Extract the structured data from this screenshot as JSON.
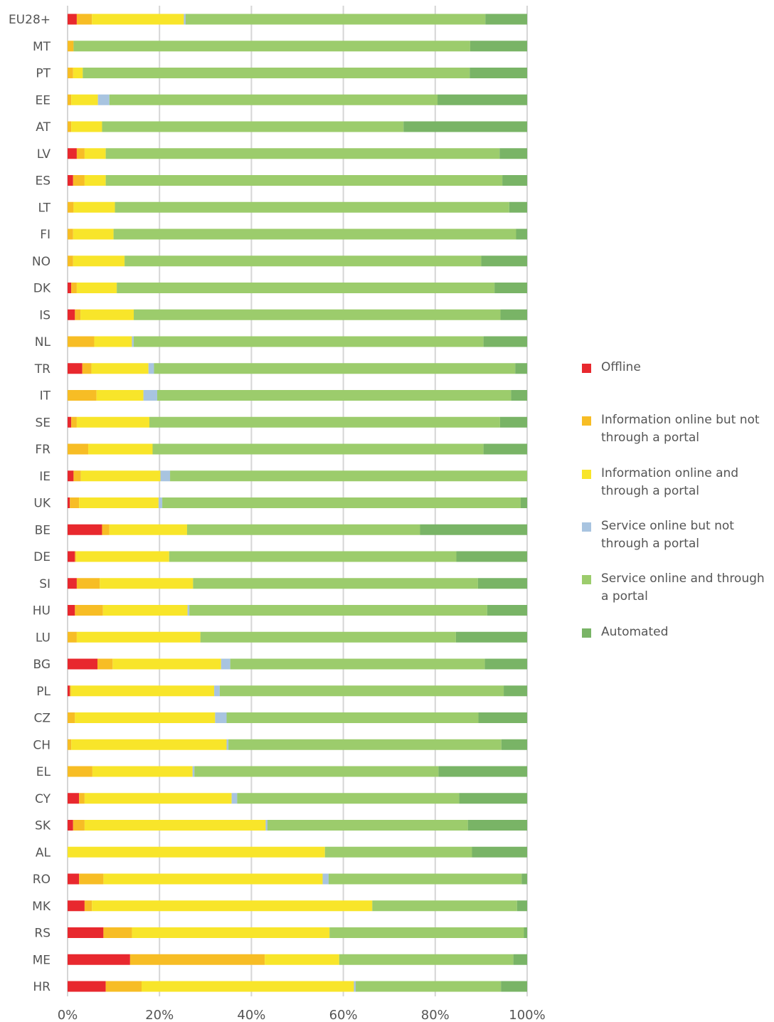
{
  "chart_data": {
    "type": "bar",
    "orientation": "horizontal",
    "stacked": true,
    "normalized": true,
    "title": "",
    "xlabel": "",
    "ylabel": "",
    "xlim": [
      0,
      100
    ],
    "x_ticks": [
      "0%",
      "20%",
      "40%",
      "60%",
      "80%",
      "100%"
    ],
    "grid": "vertical",
    "legend_position": "right",
    "categories": [
      "EU28+",
      "MT",
      "PT",
      "EE",
      "AT",
      "LV",
      "ES",
      "LT",
      "FI",
      "NO",
      "DK",
      "IS",
      "NL",
      "TR",
      "IT",
      "SE",
      "FR",
      "IE",
      "UK",
      "BE",
      "DE",
      "SI",
      "HU",
      "LU",
      "BG",
      "PL",
      "CZ",
      "CH",
      "EL",
      "CY",
      "SK",
      "AL",
      "RO",
      "MK",
      "RS",
      "ME",
      "HR"
    ],
    "series": [
      {
        "name": "Offline",
        "color": "#e8282e",
        "values": [
          2,
          0,
          0,
          0,
          0,
          2,
          1.2,
          0,
          0,
          0,
          0.8,
          1.6,
          0,
          3.2,
          0,
          0.8,
          0,
          1.3,
          0.5,
          7.5,
          1.6,
          2,
          1.6,
          0,
          6.5,
          0.5,
          0,
          0,
          0,
          2.5,
          1.2,
          0,
          2.5,
          3.7,
          7.8,
          13.6,
          8.3
        ]
      },
      {
        "name": "Information online but not through a portal",
        "color": "#f7bd25",
        "values": [
          3.3,
          1.3,
          1.2,
          0.8,
          0.8,
          1.7,
          2.5,
          1.3,
          1.2,
          1.2,
          1.2,
          1.2,
          5.8,
          2,
          6.3,
          1.2,
          4.5,
          1.6,
          2,
          1.6,
          0.3,
          5,
          6.1,
          2,
          3.3,
          0.3,
          1.6,
          0.8,
          5.4,
          1.2,
          2.5,
          0,
          5.3,
          1.6,
          6.2,
          29.3,
          7.8
        ]
      },
      {
        "name": "Information online and through a portal",
        "color": "#f8e52a",
        "values": [
          20,
          0,
          2.1,
          5.8,
          6.7,
          4.6,
          4.6,
          9,
          8.8,
          11.2,
          8.7,
          11.6,
          8.2,
          12.4,
          10.2,
          15.8,
          14,
          17.3,
          17.3,
          16.9,
          20.2,
          20.3,
          18.4,
          26.9,
          23.6,
          31.1,
          30.5,
          33.8,
          21.8,
          32,
          39.4,
          56,
          47.7,
          61,
          43,
          16.2,
          46.2
        ]
      },
      {
        "name": "Service online but not through a portal",
        "color": "#a8c4e0",
        "values": [
          0.4,
          0,
          0,
          2.5,
          0,
          0,
          0,
          0,
          0,
          0,
          0,
          0,
          0.4,
          1.2,
          3,
          0,
          0,
          2.1,
          0.8,
          0,
          0,
          0,
          0.4,
          0,
          2,
          1.2,
          2.5,
          0.4,
          0.4,
          1.2,
          0.4,
          0,
          1.3,
          0,
          0,
          0,
          0.4
        ]
      },
      {
        "name": "Service online and through a portal",
        "color": "#9ccc6c",
        "values": [
          65.2,
          86.3,
          84.2,
          71.4,
          65.6,
          85.7,
          86.3,
          85.8,
          87.6,
          77.6,
          82.2,
          79.8,
          76.1,
          78.6,
          77,
          76.3,
          72,
          77.7,
          78,
          50.7,
          62.5,
          62,
          64.8,
          55.6,
          55.4,
          61.8,
          54.8,
          59.4,
          53.1,
          48.3,
          43.6,
          32,
          42,
          31.5,
          42.3,
          37.9,
          31.6
        ]
      },
      {
        "name": "Automated",
        "color": "#79b466",
        "values": [
          9.1,
          12.4,
          12.5,
          19.5,
          26.9,
          6,
          5.4,
          3.9,
          2.4,
          10,
          7.1,
          5.8,
          9.5,
          2.6,
          3.5,
          5.9,
          9.5,
          0,
          1.4,
          23.3,
          15.4,
          10.7,
          8.7,
          15.5,
          9.2,
          5.1,
          10.6,
          5.6,
          19.3,
          14.8,
          12.9,
          12,
          1.2,
          2.2,
          0.7,
          3,
          5.7
        ]
      }
    ]
  }
}
